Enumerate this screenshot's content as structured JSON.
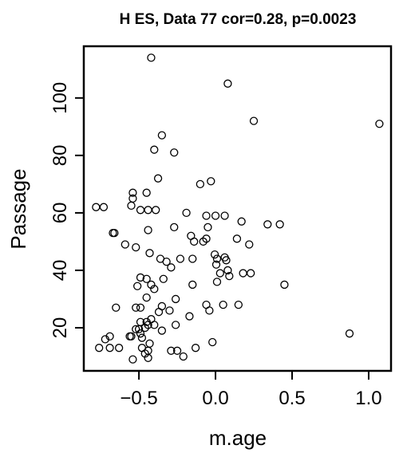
{
  "chart_data": {
    "type": "scatter",
    "title": "H ES, Data 77 cor=0.28, p=0.0023",
    "x_label": "m.age",
    "y_label": "Passage",
    "xlim": [
      -0.86,
      1.146
    ],
    "ylim": [
      5,
      118
    ],
    "xticks": [
      {
        "value": -0.5,
        "label": "−0.5"
      },
      {
        "value": 0,
        "label": "0.0"
      },
      0.5,
      {
        "value": 1,
        "label": "1.0"
      }
    ],
    "yticks": [
      20,
      40,
      60,
      80,
      100
    ],
    "color": "#000000",
    "x": [
      -0.42,
      0.08,
      0.25,
      1.07,
      -0.35,
      -0.4,
      -0.27,
      -0.375,
      -0.1,
      -0.03,
      -0.54,
      -0.45,
      -0.54,
      -0.78,
      -0.73,
      -0.49,
      -0.44,
      -0.39,
      -0.55,
      -0.19,
      -0.06,
      0,
      0.06,
      0.17,
      0.34,
      0.42,
      -0.27,
      -0.05,
      -0.44,
      -0.67,
      -0.66,
      -0.16,
      -0.14,
      -0.06,
      -0.08,
      0.14,
      0.22,
      -0.59,
      -0.52,
      -0.36,
      -0.43,
      -0.32,
      -0.29,
      -0.23,
      -0.15,
      -0.005,
      0.01,
      0.06,
      0.07,
      0.005,
      0.08,
      0.09,
      0.03,
      0.18,
      0.23,
      0.01,
      0.45,
      -0.15,
      -0.45,
      -0.34,
      -0.49,
      -0.42,
      -0.4,
      -0.51,
      -0.45,
      -0.26,
      -0.06,
      0.05,
      0.15,
      -0.04,
      -0.35,
      -0.37,
      -0.3,
      -0.52,
      -0.65,
      -0.49,
      -0.17,
      -0.45,
      -0.42,
      -0.44,
      -0.46,
      -0.4,
      -0.49,
      -0.5,
      -0.52,
      -0.35,
      -0.26,
      -0.49,
      -0.48,
      -0.55,
      -0.56,
      -0.69,
      -0.72,
      0.875,
      -0.63,
      -0.76,
      -0.69,
      -0.48,
      -0.44,
      -0.29,
      -0.25,
      -0.13,
      -0.02,
      -0.43,
      -0.44,
      -0.54,
      -0.21,
      -0.46
    ],
    "values": [
      114,
      105,
      92,
      91,
      87,
      82,
      81,
      72,
      70,
      71,
      67,
      67,
      65,
      62,
      62,
      61,
      61,
      61,
      62.5,
      60,
      59,
      59,
      59,
      57,
      56,
      56,
      55,
      55,
      54,
      53,
      53,
      52,
      50,
      51,
      50,
      51,
      49,
      49,
      48,
      44,
      46,
      43,
      41,
      44,
      44,
      45.5,
      44,
      44.5,
      43.5,
      42,
      40,
      38,
      39,
      39,
      39,
      36,
      35,
      35,
      37,
      37,
      37.5,
      35,
      33.5,
      34.5,
      30.5,
      30,
      28,
      28,
      28,
      26,
      27.5,
      25.5,
      26,
      27,
      27,
      27,
      24,
      22,
      23,
      21,
      20,
      21,
      22,
      19.5,
      19.5,
      19,
      21,
      18,
      16.5,
      17,
      17,
      17,
      16,
      18,
      13,
      13,
      13,
      13,
      12,
      12,
      12,
      13,
      15,
      14.5,
      9.5,
      9,
      10,
      11
    ]
  }
}
